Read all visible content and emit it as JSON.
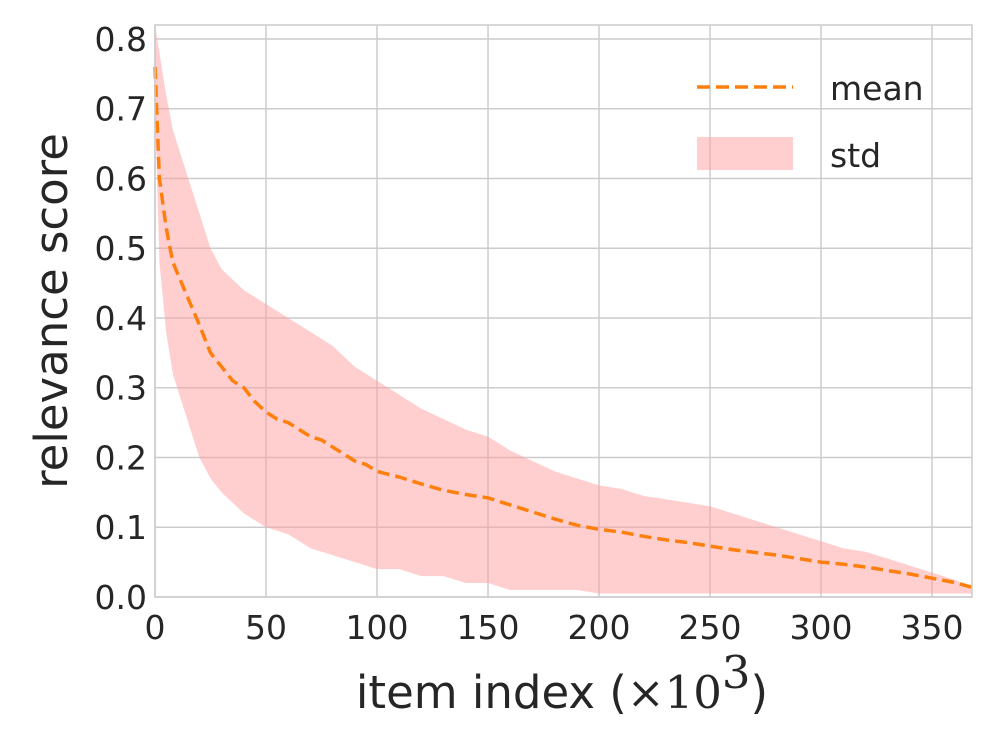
{
  "chart_data": {
    "type": "line",
    "title": "",
    "xlabel": {
      "prefix": "item index (",
      "times": "×",
      "base": "10",
      "exponent": "3",
      "suffix": ")"
    },
    "ylabel": "relevance score",
    "xlim": [
      0,
      368
    ],
    "ylim": [
      0,
      0.82
    ],
    "xticks": [
      0,
      50,
      100,
      150,
      200,
      250,
      300,
      350
    ],
    "xtick_labels": [
      "0",
      "50",
      "100",
      "150",
      "200",
      "250",
      "300",
      "350"
    ],
    "yticks": [
      0.0,
      0.1,
      0.2,
      0.3,
      0.4,
      0.5,
      0.6,
      0.7,
      0.8
    ],
    "ytick_labels": [
      "0.0",
      "0.1",
      "0.2",
      "0.3",
      "0.4",
      "0.5",
      "0.6",
      "0.7",
      "0.8"
    ],
    "grid": true,
    "legend_position": "top-right",
    "series": [
      {
        "name": "mean",
        "style": "dashed",
        "color": "#ff7f0e",
        "x": [
          0,
          2,
          5,
          8,
          12,
          16,
          20,
          25,
          30,
          35,
          40,
          45,
          50,
          55,
          60,
          65,
          70,
          75,
          80,
          85,
          90,
          95,
          100,
          110,
          120,
          130,
          140,
          150,
          160,
          170,
          180,
          190,
          200,
          210,
          220,
          230,
          240,
          250,
          260,
          270,
          280,
          290,
          300,
          310,
          320,
          330,
          340,
          350,
          360,
          368
        ],
        "y": [
          0.76,
          0.6,
          0.53,
          0.48,
          0.45,
          0.42,
          0.39,
          0.35,
          0.33,
          0.31,
          0.3,
          0.28,
          0.265,
          0.255,
          0.25,
          0.24,
          0.23,
          0.225,
          0.215,
          0.205,
          0.195,
          0.19,
          0.18,
          0.172,
          0.162,
          0.153,
          0.147,
          0.142,
          0.132,
          0.122,
          0.112,
          0.103,
          0.097,
          0.093,
          0.087,
          0.082,
          0.078,
          0.073,
          0.068,
          0.064,
          0.06,
          0.055,
          0.05,
          0.047,
          0.043,
          0.038,
          0.033,
          0.027,
          0.021,
          0.014
        ]
      },
      {
        "name": "std",
        "style": "band",
        "color": "#ff9f9f",
        "x": [
          0,
          2,
          5,
          8,
          12,
          16,
          20,
          25,
          30,
          40,
          50,
          60,
          70,
          80,
          90,
          100,
          110,
          120,
          130,
          140,
          150,
          160,
          170,
          180,
          190,
          200,
          210,
          220,
          230,
          240,
          250,
          260,
          270,
          280,
          290,
          300,
          310,
          320,
          330,
          340,
          350,
          360,
          368
        ],
        "upper": [
          0.82,
          0.78,
          0.72,
          0.67,
          0.63,
          0.59,
          0.55,
          0.5,
          0.47,
          0.44,
          0.42,
          0.4,
          0.38,
          0.36,
          0.33,
          0.31,
          0.29,
          0.27,
          0.255,
          0.24,
          0.23,
          0.21,
          0.195,
          0.18,
          0.17,
          0.16,
          0.155,
          0.145,
          0.14,
          0.135,
          0.13,
          0.12,
          0.11,
          0.1,
          0.09,
          0.08,
          0.07,
          0.065,
          0.055,
          0.045,
          0.035,
          0.025,
          0.015
        ],
        "lower": [
          0.7,
          0.48,
          0.38,
          0.32,
          0.28,
          0.24,
          0.2,
          0.17,
          0.15,
          0.12,
          0.1,
          0.09,
          0.07,
          0.06,
          0.05,
          0.04,
          0.04,
          0.03,
          0.03,
          0.02,
          0.02,
          0.01,
          0.01,
          0.01,
          0.01,
          0.005,
          0.005,
          0.005,
          0.005,
          0.005,
          0.005,
          0.005,
          0.005,
          0.005,
          0.005,
          0.005,
          0.005,
          0.005,
          0.005,
          0.005,
          0.005,
          0.005,
          0.005
        ]
      }
    ],
    "legend": [
      {
        "label": "mean",
        "marker": "dashed-line",
        "color": "#ff7f0e"
      },
      {
        "label": "std",
        "marker": "filled-patch",
        "color": "#ff9f9f"
      }
    ]
  }
}
